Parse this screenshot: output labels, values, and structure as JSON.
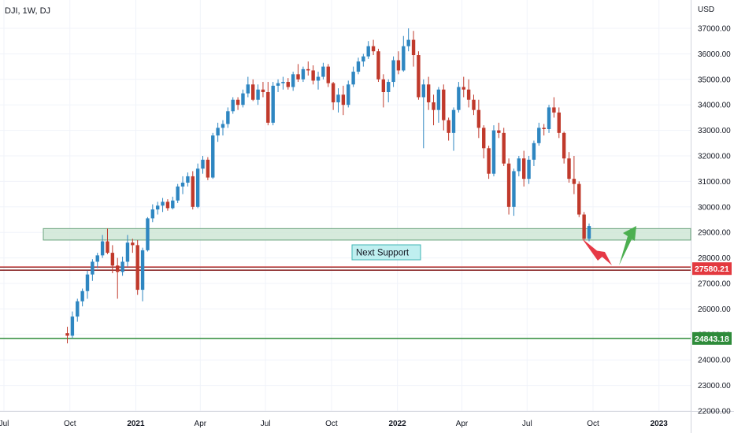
{
  "header": {
    "symbol_title": "DJI, 1W, DJ"
  },
  "colors": {
    "up": "#2e86c1",
    "down": "#c0392b",
    "support_zone_fill": "#cfe6d6",
    "support_zone_stroke": "#6aa37d",
    "resistance_line": "#8b2b2b",
    "green_line": "#2e8b3a",
    "red_arrow": "#e63946",
    "green_arrow": "#4caf50",
    "note_fill": "#bfeff0",
    "note_stroke": "#3fb5b5",
    "grid": "#f0f3fa",
    "axis_text": "#131722"
  },
  "chart_data": {
    "type": "candlestick",
    "title": "DJI, 1W, DJ",
    "currency_label": "USD",
    "ylim": [
      21700,
      38000
    ],
    "y_ticks": [
      37000,
      36000,
      35000,
      34000,
      33000,
      32000,
      31000,
      30000,
      29000,
      28000,
      27000,
      26000,
      25000,
      24000,
      23000,
      22000
    ],
    "y_tick_labels": [
      "37000.00",
      "36000.00",
      "35000.00",
      "34000.00",
      "33000.00",
      "32000.00",
      "31000.00",
      "30000.00",
      "29000.00",
      "28000.00",
      "27000.00",
      "26000.00",
      "25000.00",
      "24000.00",
      "23000.00",
      "22000.00"
    ],
    "x_ticks": [
      {
        "label": "Jul",
        "date": "2020-07-01"
      },
      {
        "label": "Oct",
        "date": "2020-10-01"
      },
      {
        "label": "2021",
        "date": "2021-01-01"
      },
      {
        "label": "Apr",
        "date": "2021-04-01"
      },
      {
        "label": "Jul",
        "date": "2021-07-01"
      },
      {
        "label": "Oct",
        "date": "2021-10-01"
      },
      {
        "label": "2022",
        "date": "2022-01-01"
      },
      {
        "label": "Apr",
        "date": "2022-04-01"
      },
      {
        "label": "Jul",
        "date": "2022-07-01"
      },
      {
        "label": "Oct",
        "date": "2022-10-01"
      },
      {
        "label": "2023",
        "date": "2023-01-01"
      }
    ],
    "candles": [
      [
        25050,
        25300,
        24650,
        24950
      ],
      [
        24950,
        25900,
        24850,
        25700
      ],
      [
        25700,
        26400,
        25500,
        26300
      ],
      [
        26300,
        26800,
        26100,
        26700
      ],
      [
        26700,
        27500,
        26400,
        27350
      ],
      [
        27350,
        27950,
        27100,
        27850
      ],
      [
        27850,
        28200,
        27600,
        28100
      ],
      [
        28100,
        28900,
        28000,
        28650
      ],
      [
        28650,
        29150,
        28150,
        28200
      ],
      [
        28200,
        28500,
        27400,
        27700
      ],
      [
        27700,
        28000,
        26400,
        27450
      ],
      [
        27450,
        28050,
        27300,
        27850
      ],
      [
        27850,
        28900,
        27650,
        28600
      ],
      [
        28600,
        28750,
        28200,
        28500
      ],
      [
        28500,
        28700,
        26550,
        26750
      ],
      [
        26750,
        28400,
        26300,
        28300
      ],
      [
        28300,
        29600,
        28250,
        29550
      ],
      [
        29550,
        30100,
        29400,
        29900
      ],
      [
        29900,
        30200,
        29700,
        30050
      ],
      [
        30050,
        30350,
        29800,
        30200
      ],
      [
        30200,
        30300,
        29850,
        29950
      ],
      [
        29950,
        30400,
        29900,
        30250
      ],
      [
        30250,
        30900,
        30150,
        30800
      ],
      [
        30800,
        31200,
        30500,
        30950
      ],
      [
        30950,
        31350,
        30800,
        31200
      ],
      [
        31200,
        31400,
        29900,
        30000
      ],
      [
        30000,
        31700,
        29950,
        31500
      ],
      [
        31500,
        32000,
        31300,
        31850
      ],
      [
        31850,
        31950,
        31050,
        31150
      ],
      [
        31150,
        32900,
        31100,
        32800
      ],
      [
        32800,
        33300,
        32550,
        33100
      ],
      [
        33100,
        33400,
        32800,
        33250
      ],
      [
        33250,
        33900,
        33100,
        33750
      ],
      [
        33750,
        34300,
        33650,
        34200
      ],
      [
        34200,
        34300,
        33800,
        34000
      ],
      [
        34000,
        34600,
        33900,
        34450
      ],
      [
        34450,
        35100,
        34300,
        34800
      ],
      [
        34800,
        35000,
        34150,
        34200
      ],
      [
        34200,
        34800,
        34000,
        34600
      ],
      [
        34600,
        34900,
        34300,
        34500
      ],
      [
        34500,
        34900,
        33200,
        33300
      ],
      [
        33300,
        34900,
        33200,
        34750
      ],
      [
        34750,
        35000,
        34500,
        34850
      ],
      [
        34850,
        35100,
        34600,
        34900
      ],
      [
        34900,
        35050,
        34600,
        34700
      ],
      [
        34700,
        35300,
        34550,
        35200
      ],
      [
        35200,
        35600,
        34900,
        35000
      ],
      [
        35000,
        35500,
        34900,
        35400
      ],
      [
        35400,
        35700,
        35150,
        35350
      ],
      [
        35350,
        35550,
        34800,
        34950
      ],
      [
        34950,
        35300,
        34600,
        35100
      ],
      [
        35100,
        35650,
        35000,
        35500
      ],
      [
        35500,
        35600,
        34700,
        34850
      ],
      [
        34850,
        34900,
        33800,
        34100
      ],
      [
        34100,
        34650,
        33700,
        34400
      ],
      [
        34400,
        34750,
        33600,
        34000
      ],
      [
        34000,
        34950,
        33900,
        34800
      ],
      [
        34800,
        35500,
        34700,
        35300
      ],
      [
        35300,
        35850,
        35200,
        35700
      ],
      [
        35700,
        36000,
        35500,
        35900
      ],
      [
        35900,
        36500,
        35800,
        36300
      ],
      [
        36300,
        36550,
        35950,
        36100
      ],
      [
        36100,
        36200,
        34900,
        35000
      ],
      [
        35000,
        35200,
        33900,
        34500
      ],
      [
        34500,
        35000,
        34100,
        34900
      ],
      [
        34900,
        35900,
        34700,
        35750
      ],
      [
        35750,
        36100,
        35200,
        35350
      ],
      [
        35350,
        36700,
        35300,
        36300
      ],
      [
        36300,
        37000,
        36100,
        36550
      ],
      [
        36550,
        36900,
        35500,
        35950
      ],
      [
        35950,
        36100,
        34200,
        34300
      ],
      [
        34300,
        35000,
        32300,
        34800
      ],
      [
        34800,
        35100,
        33800,
        34100
      ],
      [
        34100,
        34400,
        33200,
        33800
      ],
      [
        33800,
        34700,
        33300,
        34600
      ],
      [
        34600,
        34800,
        33000,
        33400
      ],
      [
        33400,
        33500,
        32600,
        32900
      ],
      [
        32900,
        33900,
        32200,
        33800
      ],
      [
        33800,
        34900,
        33700,
        34700
      ],
      [
        34700,
        35100,
        34300,
        34600
      ],
      [
        34600,
        35000,
        33900,
        34200
      ],
      [
        34200,
        34400,
        33600,
        33800
      ],
      [
        33800,
        34200,
        32700,
        33100
      ],
      [
        33100,
        33200,
        31900,
        32300
      ],
      [
        32300,
        32400,
        31100,
        31300
      ],
      [
        31300,
        33200,
        31200,
        33000
      ],
      [
        33000,
        33300,
        32700,
        32900
      ],
      [
        32900,
        33100,
        31600,
        31700
      ],
      [
        31700,
        31900,
        29700,
        30000
      ],
      [
        30000,
        31500,
        29650,
        31400
      ],
      [
        31400,
        32000,
        31200,
        31900
      ],
      [
        31900,
        32200,
        30800,
        31100
      ],
      [
        31100,
        32000,
        30900,
        31850
      ],
      [
        31850,
        32600,
        31600,
        32500
      ],
      [
        32500,
        33300,
        32400,
        33100
      ],
      [
        33100,
        33250,
        32800,
        33050
      ],
      [
        33050,
        34000,
        32900,
        33900
      ],
      [
        33900,
        34300,
        33500,
        33700
      ],
      [
        33700,
        33900,
        32700,
        32900
      ],
      [
        32900,
        32950,
        31700,
        31900
      ],
      [
        31900,
        32150,
        30950,
        31100
      ],
      [
        31100,
        32000,
        30500,
        30900
      ],
      [
        30900,
        31000,
        29600,
        29700
      ],
      [
        29700,
        29800,
        28700,
        28750
      ],
      [
        28750,
        29350,
        28650,
        29250
      ]
    ],
    "annotations": [
      {
        "type": "zone",
        "label": "support zone",
        "from": 28700,
        "to": 29150
      },
      {
        "type": "text",
        "text": "Next Support"
      },
      {
        "type": "hline",
        "value": 27580.21,
        "label": "27580.21"
      },
      {
        "type": "hline",
        "value": 24843.18,
        "label": "24843.18"
      },
      {
        "type": "arrow",
        "color": "red",
        "direction": "down"
      },
      {
        "type": "arrow",
        "color": "green",
        "direction": "up"
      }
    ]
  }
}
